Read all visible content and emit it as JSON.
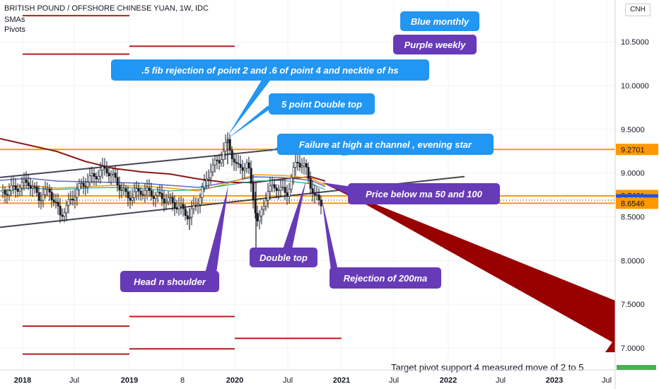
{
  "header": {
    "title": "BRITISH POUND / OFFSHORE CHINESE YUAN, 1W, IDC",
    "indicators": [
      "SMAs",
      "Pivots"
    ],
    "currency": "CNH"
  },
  "colors": {
    "up": "#26a69a",
    "down": "#ef5350",
    "blue_callout": "#2196f3",
    "purple_callout": "#673ab7",
    "orange_line": "#ff9800",
    "pivot_red": "#b71c1c",
    "projection": "#990000",
    "channel": "#434651"
  },
  "chart_data": {
    "type": "candlestick",
    "x_axis": {
      "labels": [
        "2018",
        "Jul",
        "2019",
        "8",
        "2020",
        "Jul",
        "2021",
        "Jul",
        "2022",
        "Jul",
        "2023",
        "Jul"
      ],
      "bold": [
        "2018",
        "2019",
        "2020",
        "2021",
        "2022",
        "2023"
      ]
    },
    "y_axis": {
      "ticks": [
        "7.0000",
        "7.5000",
        "8.0000",
        "8.5000",
        "9.0000",
        "9.5000",
        "10.0000",
        "10.5000"
      ],
      "range": [
        6.8,
        10.95
      ]
    },
    "price_tags": [
      {
        "value": "9.2701",
        "style": "orange"
      },
      {
        "value": "8.7431",
        "style": "orange"
      },
      {
        "value": "8.6929",
        "style": "blue"
      },
      {
        "value": "8.6546",
        "style": "orange"
      }
    ],
    "horizontal_levels": [
      9.27,
      8.74,
      8.655
    ],
    "annotations": {
      "blue": [
        "Blue monthly",
        ".5 fib rejection of point 2 and .6 of point 4 and necktie of hs",
        "5 point Double top",
        "Failure at high at channel  , evening star"
      ],
      "purple": [
        "Purple weekly",
        "Price below ma 50 and 100",
        "Head n shoulder",
        "Double top",
        "Rejection of 200ma"
      ]
    },
    "note": "Target pivot support 4 measured move of 2 to 5"
  }
}
